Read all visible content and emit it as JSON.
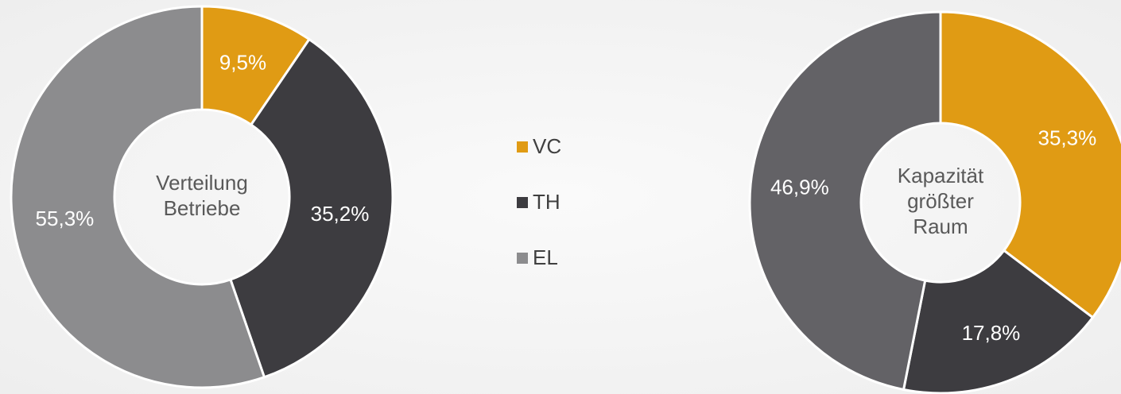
{
  "chart_data": [
    {
      "type": "donut",
      "title": [
        "Verteilung",
        "Betriebe"
      ],
      "values": [
        9.5,
        35.2,
        55.3
      ],
      "value_labels": [
        "9,5%",
        "35,2%",
        "55,3%"
      ],
      "colors": [
        "#e09b14",
        "#3d3c40",
        "#8c8c8e"
      ]
    },
    {
      "type": "donut",
      "title": [
        "Kapazität",
        "größter",
        "Raum"
      ],
      "values": [
        35.3,
        17.8,
        46.9
      ],
      "value_labels": [
        "35,3%",
        "17,8%",
        "46,9%"
      ],
      "colors": [
        "#e09b14",
        "#3d3c40",
        "#636266"
      ]
    }
  ],
  "legend": {
    "categories": [
      "VC",
      "TH",
      "EL"
    ],
    "colors": [
      "#e09b14",
      "#3d3c40",
      "#8c8c8e"
    ]
  }
}
